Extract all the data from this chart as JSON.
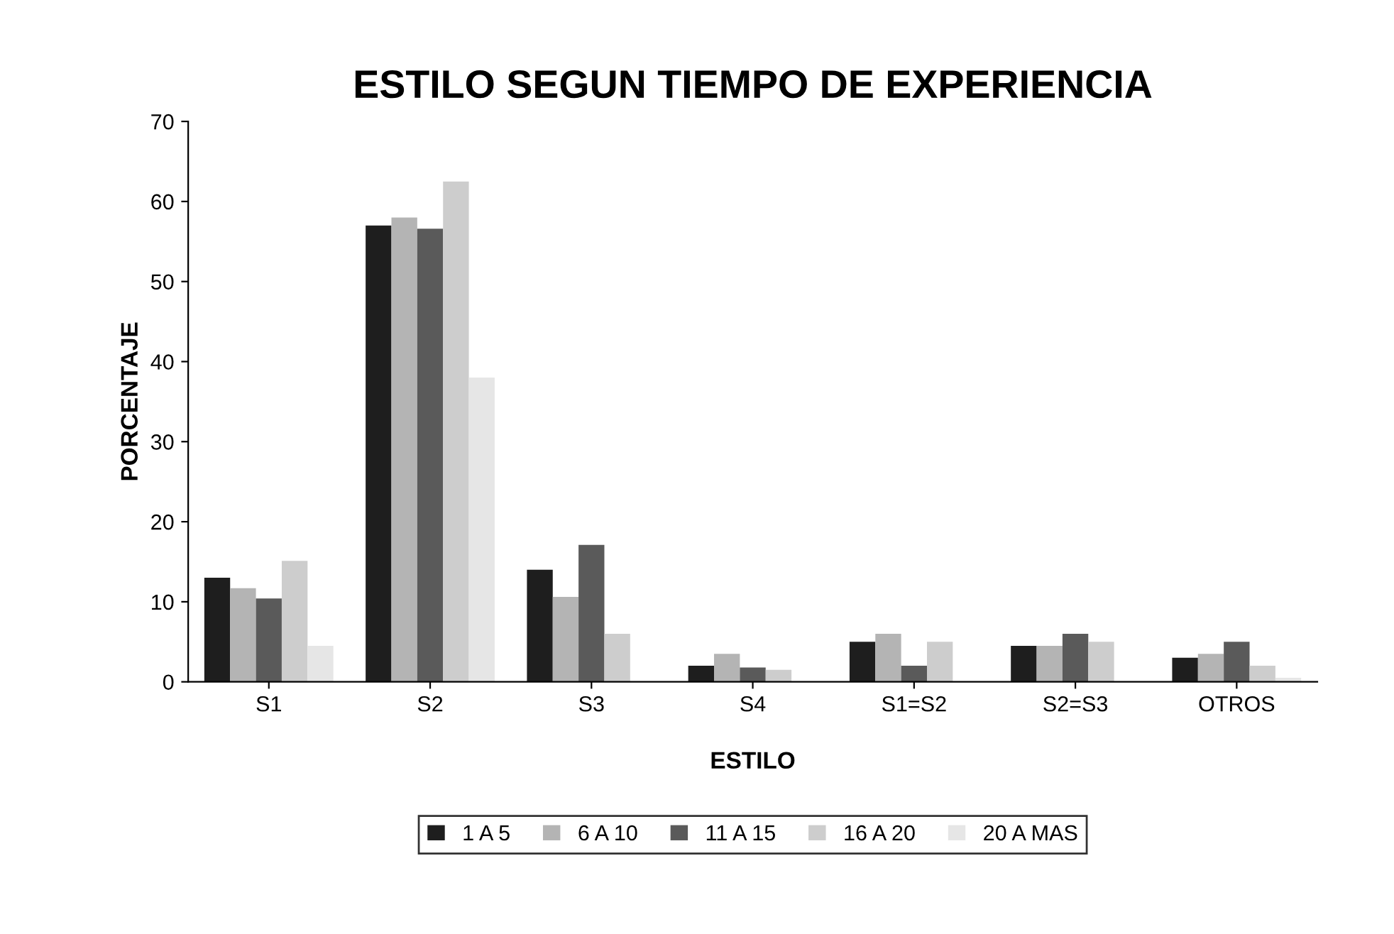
{
  "chart_data": {
    "type": "bar",
    "title": "ESTILO SEGUN TIEMPO DE EXPERIENCIA",
    "xlabel": "ESTILO",
    "ylabel": "PORCENTAJE",
    "categories": [
      "S1",
      "S2",
      "S3",
      "S4",
      "S1=S2",
      "S2=S3",
      "OTROS"
    ],
    "series": [
      {
        "name": "1 A 5",
        "color": "#1e1e1e",
        "values": [
          13,
          57,
          14,
          2,
          5,
          4.5,
          3
        ]
      },
      {
        "name": "6 A 10",
        "color": "#b4b4b4",
        "values": [
          11.7,
          58,
          10.6,
          3.5,
          6,
          4.5,
          3.5
        ]
      },
      {
        "name": "11 A 15",
        "color": "#5a5a5a",
        "values": [
          10.4,
          56.6,
          17.1,
          1.8,
          2,
          6,
          5
        ]
      },
      {
        "name": "16 A 20",
        "color": "#cdcdcd",
        "values": [
          15.1,
          62.5,
          6,
          1.5,
          5,
          5,
          2
        ]
      },
      {
        "name": "20 A MAS",
        "color": "#e6e6e6",
        "values": [
          4.5,
          38,
          0,
          0,
          0,
          0,
          0.5
        ]
      }
    ],
    "ylim": [
      0,
      70
    ],
    "yticks": [
      0,
      10,
      20,
      30,
      40,
      50,
      60,
      70
    ],
    "grid": false,
    "legend": "bottom"
  }
}
